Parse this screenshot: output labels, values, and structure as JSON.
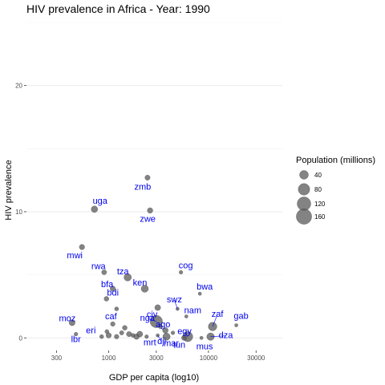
{
  "chart_data": {
    "type": "scatter",
    "title": "HIV prevalence in Africa - Year: 1990",
    "xlabel": "GDP per capita (log10)",
    "ylabel": "HIV prevalence",
    "x_scale": "log10",
    "xlim": [
      150,
      55000
    ],
    "ylim": [
      -1,
      25
    ],
    "x_ticks": [
      300,
      1000,
      3000,
      10000,
      30000
    ],
    "x_tick_labels": [
      "300",
      "1000",
      "3000",
      "10000",
      "30000"
    ],
    "y_ticks": [
      0,
      10,
      20
    ],
    "y_tick_labels": [
      "0",
      "10",
      "20"
    ],
    "grid": true,
    "legend": {
      "title": "Population (millions)",
      "position": "right",
      "sizes": [
        40,
        80,
        120,
        160
      ],
      "labels": [
        "40",
        "80",
        "120",
        "160"
      ]
    },
    "points": [
      {
        "label": "zmb",
        "x": 2450,
        "y": 12.7,
        "pop": 8
      },
      {
        "label": "uga",
        "x": 720,
        "y": 10.2,
        "pop": 17
      },
      {
        "label": "zwe",
        "x": 2600,
        "y": 10.1,
        "pop": 10
      },
      {
        "label": "mwi",
        "x": 540,
        "y": 7.2,
        "pop": 9
      },
      {
        "label": "cog",
        "x": 5300,
        "y": 5.2,
        "pop": 2
      },
      {
        "label": "rwa",
        "x": 900,
        "y": 5.2,
        "pop": 7
      },
      {
        "label": "tza",
        "x": 1550,
        "y": 4.8,
        "pop": 25
      },
      {
        "label": "ken",
        "x": 2300,
        "y": 3.9,
        "pop": 23
      },
      {
        "label": "bfa",
        "x": 1100,
        "y": 3.9,
        "pop": 9
      },
      {
        "label": "bwa",
        "x": 8200,
        "y": 3.5,
        "pop": 1
      },
      {
        "label": "bdi",
        "x": 950,
        "y": 3.1,
        "pop": 6
      },
      {
        "label": "civ",
        "x": 3100,
        "y": 2.4,
        "pop": 12
      },
      {
        "label": "swz",
        "x": 4900,
        "y": 2.3,
        "pop": 1
      },
      {
        "label": "caf",
        "x": 1200,
        "y": 2.3,
        "pop": 3
      },
      {
        "label": "nam",
        "x": 6000,
        "y": 1.7,
        "pop": 1
      },
      {
        "label": "moz",
        "x": 430,
        "y": 1.2,
        "pop": 13
      },
      {
        "label": "nga",
        "x": 3000,
        "y": 1.3,
        "pop": 95
      },
      {
        "label": "zaf",
        "x": 11000,
        "y": 0.9,
        "pop": 37
      },
      {
        "label": "gab",
        "x": 19000,
        "y": 1.0,
        "pop": 1
      },
      {
        "label": "eri",
        "x": 960,
        "y": 0.5,
        "pop": 3
      },
      {
        "label": "ago",
        "x": 3700,
        "y": 0.6,
        "pop": 11
      },
      {
        "label": "egy",
        "x": 6200,
        "y": 0.1,
        "pop": 57
      },
      {
        "label": "dji",
        "x": 3100,
        "y": 0.2,
        "pop": 1
      },
      {
        "label": "dza",
        "x": 10500,
        "y": 0.1,
        "pop": 26
      },
      {
        "label": "lbr",
        "x": 470,
        "y": 0.3,
        "pop": 2
      },
      {
        "label": "mrt",
        "x": 2400,
        "y": 0.1,
        "pop": 2
      },
      {
        "label": "mar",
        "x": 3800,
        "y": 0.1,
        "pop": 24
      },
      {
        "label": "tun",
        "x": 5700,
        "y": 0.0,
        "pop": 8
      },
      {
        "label": "mus",
        "x": 8500,
        "y": 0.0,
        "pop": 1
      },
      {
        "label": "",
        "x": 1100,
        "y": 1.1,
        "pop": 5
      },
      {
        "label": "",
        "x": 1450,
        "y": 0.8,
        "pop": 6
      },
      {
        "label": "",
        "x": 1350,
        "y": 0.4,
        "pop": 4
      },
      {
        "label": "",
        "x": 1600,
        "y": 0.3,
        "pop": 8
      },
      {
        "label": "",
        "x": 1750,
        "y": 0.2,
        "pop": 3
      },
      {
        "label": "",
        "x": 1900,
        "y": 0.1,
        "pop": 10
      },
      {
        "label": "",
        "x": 2050,
        "y": 0.3,
        "pop": 12
      },
      {
        "label": "",
        "x": 1200,
        "y": 0.1,
        "pop": 5
      },
      {
        "label": "",
        "x": 850,
        "y": 0.1,
        "pop": 3
      },
      {
        "label": "",
        "x": 4400,
        "y": 0.4,
        "pop": 2
      },
      {
        "label": "",
        "x": 3300,
        "y": 0.9,
        "pop": 4
      },
      {
        "label": "",
        "x": 1000,
        "y": 0.2,
        "pop": 9
      }
    ]
  }
}
